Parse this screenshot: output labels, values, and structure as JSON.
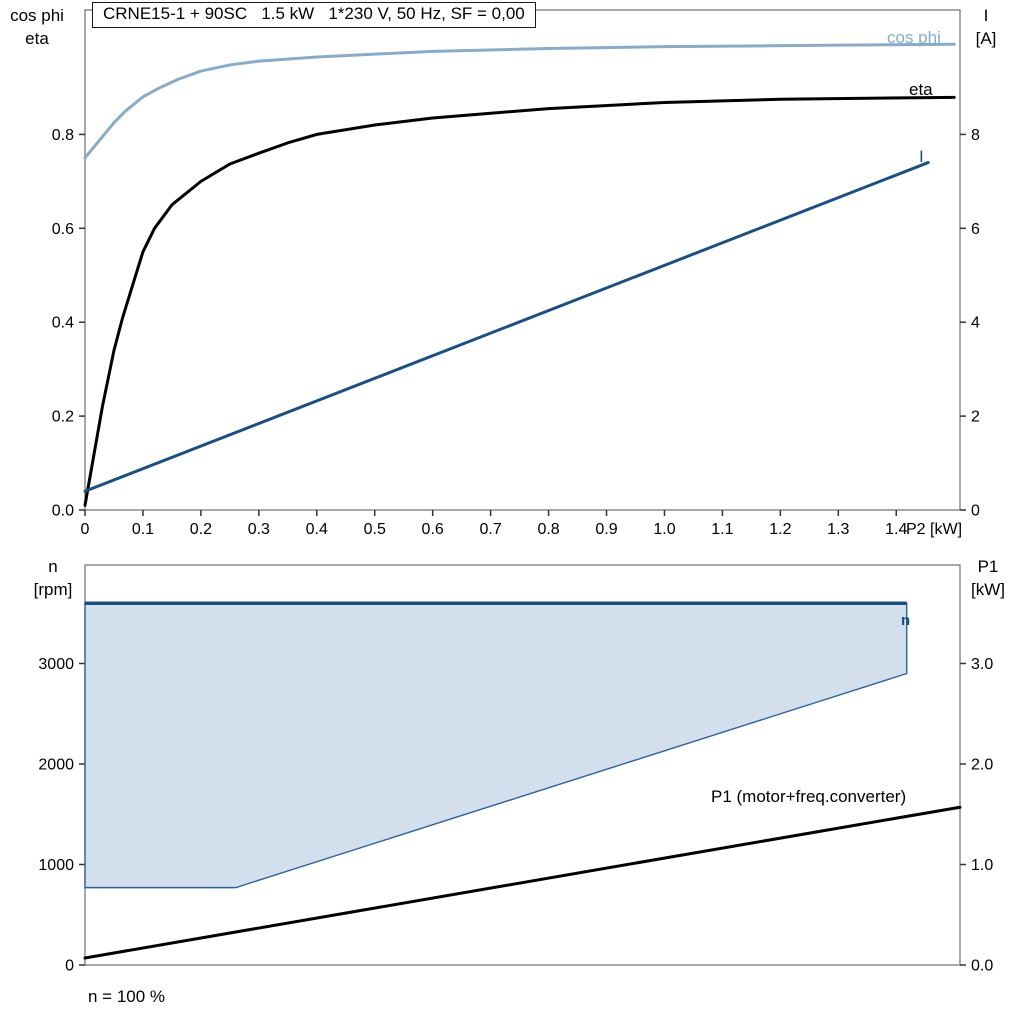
{
  "footnote": "n = 100 %",
  "colors": {
    "light_blue": "#8aabc7",
    "dark_blue": "#1d4f7e",
    "envelope_fill": "#d3dfec",
    "black": "#000000"
  },
  "chart_data": [
    {
      "type": "line",
      "title": "CRNE15-1 + 90SC   1.5 kW   1*230 V, 50 Hz, SF = 0,00",
      "x_label": "P2 [kW]",
      "x_range": [
        0,
        1.51
      ],
      "x_ticks": [
        0,
        0.1,
        0.2,
        0.3,
        0.4,
        0.5,
        0.6,
        0.7,
        0.8,
        0.9,
        1.0,
        1.1,
        1.2,
        1.3,
        1.4
      ],
      "x_tick_labels": [
        "0",
        "0.1",
        "0.2",
        "0.3",
        "0.4",
        "0.5",
        "0.6",
        "0.7",
        "0.8",
        "0.9",
        "1.0",
        "1.1",
        "1.2",
        "1.3",
        "1.4"
      ],
      "y_left": {
        "label_lines": [
          "cos phi",
          "eta"
        ],
        "range": [
          0,
          1.065
        ],
        "ticks": [
          0,
          0.2,
          0.4,
          0.6,
          0.8
        ],
        "tick_labels": [
          "0.0",
          "0.2",
          "0.4",
          "0.6",
          "0.8"
        ]
      },
      "y_right": {
        "label_lines": [
          "I",
          "[A]"
        ],
        "range": [
          0,
          10.65
        ],
        "ticks": [
          0,
          2,
          4,
          6,
          8
        ],
        "tick_labels": [
          "0",
          "2",
          "4",
          "6",
          "8"
        ]
      },
      "grid": false,
      "series": [
        {
          "name": "cos phi",
          "axis": "left",
          "color": "#8aabc7",
          "width": 3,
          "x": [
            0,
            0.01,
            0.03,
            0.05,
            0.07,
            0.1,
            0.13,
            0.16,
            0.2,
            0.25,
            0.3,
            0.4,
            0.5,
            0.6,
            0.8,
            1.0,
            1.2,
            1.5
          ],
          "y": [
            0.75,
            0.765,
            0.795,
            0.825,
            0.85,
            0.88,
            0.9,
            0.917,
            0.935,
            0.948,
            0.956,
            0.965,
            0.971,
            0.977,
            0.983,
            0.987,
            0.989,
            0.992
          ]
        },
        {
          "name": "eta",
          "axis": "left",
          "color": "#000000",
          "width": 3,
          "x": [
            0,
            0.01,
            0.03,
            0.05,
            0.065,
            0.08,
            0.1,
            0.12,
            0.15,
            0.2,
            0.25,
            0.3,
            0.35,
            0.4,
            0.5,
            0.6,
            0.8,
            1.0,
            1.2,
            1.5
          ],
          "y": [
            0.01,
            0.08,
            0.22,
            0.34,
            0.41,
            0.47,
            0.55,
            0.6,
            0.65,
            0.7,
            0.737,
            0.76,
            0.782,
            0.8,
            0.82,
            0.835,
            0.855,
            0.868,
            0.875,
            0.879
          ]
        },
        {
          "name": "I",
          "axis": "right",
          "color": "#1d4f7e",
          "width": 3,
          "x": [
            0,
            1.455
          ],
          "y": [
            0.4,
            7.4
          ]
        }
      ]
    },
    {
      "type": "area",
      "x_range": [
        0,
        1.51
      ],
      "y_left": {
        "label_lines": [
          "n",
          "[rpm]"
        ],
        "range": [
          0,
          3980
        ],
        "ticks": [
          0,
          1000,
          2000,
          3000
        ],
        "tick_labels": [
          "0",
          "1000",
          "2000",
          "3000"
        ]
      },
      "y_right": {
        "label_lines": [
          "P1",
          "[kW]"
        ],
        "range": [
          0,
          3.98
        ],
        "ticks": [
          0,
          1,
          2,
          3
        ],
        "tick_labels": [
          "0.0",
          "1.0",
          "2.0",
          "3.0"
        ]
      },
      "envelope": {
        "name": "n",
        "n_max_rpm": 3600,
        "n_min_rpm": 770,
        "fill": "#d3dfec",
        "stroke": "#2e6296",
        "stroke_width": 1.4,
        "points": [
          [
            0,
            770
          ],
          [
            0,
            3600
          ],
          [
            1.418,
            3600
          ],
          [
            1.418,
            2900
          ],
          [
            0.26,
            770
          ]
        ],
        "top_line": {
          "rpm": 3600,
          "x": [
            0,
            1.418
          ],
          "color": "#1d4f7e",
          "width": 3.5
        }
      },
      "series": [
        {
          "name": "P1 (motor+freq.converter)",
          "axis": "right",
          "color": "#000000",
          "width": 3,
          "x": [
            0,
            1.51
          ],
          "y": [
            0.07,
            1.57
          ]
        }
      ],
      "footnote": "n = 100 %"
    }
  ]
}
